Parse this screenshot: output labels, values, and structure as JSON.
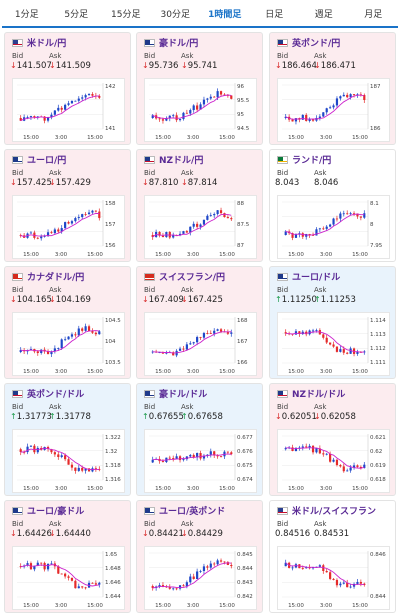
{
  "tabs": [
    "1分足",
    "5分足",
    "15分足",
    "30分足",
    "1時間足",
    "日足",
    "週足",
    "月足"
  ],
  "active_tab": 4,
  "labels": {
    "bid": "Bid",
    "ask": "Ask"
  },
  "colors": {
    "up_candle": "#1e46c8",
    "down_candle": "#e52a2a",
    "ma_line": "#cc22cc",
    "pair_text": "#5a2a95",
    "down_bg": "#fcecef",
    "up_bg": "#e9f3fc"
  },
  "cards": [
    {
      "name": "米ドル/円",
      "bid": "141.507",
      "ask": "141.509",
      "dir": "down",
      "flag_icon": "us-flag-icon",
      "y_ticks": [
        "142",
        "141"
      ],
      "x_ticks": [
        "15:00",
        "3:00",
        "15:00"
      ],
      "shape": "up"
    },
    {
      "name": "豪ドル/円",
      "bid": "95.736",
      "ask": "95.741",
      "dir": "down",
      "flag_icon": "au-flag-icon",
      "y_ticks": [
        "96",
        "95.5",
        "95",
        "94.5"
      ],
      "x_ticks": [
        "15:00",
        "3:00",
        "15:00"
      ],
      "shape": "up"
    },
    {
      "name": "英ポンド/円",
      "bid": "186.464",
      "ask": "186.471",
      "dir": "down",
      "flag_icon": "uk-flag-icon",
      "y_ticks": [
        "187",
        "186"
      ],
      "x_ticks": [
        "15:00",
        "3:00",
        "15:00"
      ],
      "shape": "up"
    },
    {
      "name": "ユーロ/円",
      "bid": "157.425",
      "ask": "157.429",
      "dir": "down",
      "flag_icon": "eu-flag-icon",
      "y_ticks": [
        "158",
        "157",
        "156"
      ],
      "x_ticks": [
        "15:00",
        "3:00",
        "15:00"
      ],
      "shape": "up"
    },
    {
      "name": "NZドル/円",
      "bid": "87.810",
      "ask": "87.814",
      "dir": "down",
      "flag_icon": "nz-flag-icon",
      "y_ticks": [
        "88",
        "87.5",
        "87"
      ],
      "x_ticks": [
        "15:00",
        "3:00",
        "15:00"
      ],
      "shape": "up"
    },
    {
      "name": "ランド/円",
      "bid": "8.043",
      "ask": "8.046",
      "dir": "flat",
      "flag_icon": "za-flag-icon",
      "y_ticks": [
        "8.1",
        "8",
        "7.95"
      ],
      "x_ticks": [
        "15:00",
        "3:00",
        "15:00"
      ],
      "shape": "up"
    },
    {
      "name": "カナダドル/円",
      "bid": "104.165",
      "ask": "104.169",
      "dir": "down",
      "flag_icon": "ca-flag-icon",
      "y_ticks": [
        "104.5",
        "104",
        "103.5"
      ],
      "x_ticks": [
        "15:00",
        "3:00",
        "15:00"
      ],
      "shape": "up"
    },
    {
      "name": "スイスフラン/円",
      "bid": "167.409",
      "ask": "167.425",
      "dir": "down",
      "flag_icon": "ch-flag-icon",
      "y_ticks": [
        "168",
        "167",
        "166"
      ],
      "x_ticks": [
        "15:00",
        "3:00",
        "15:00"
      ],
      "shape": "up"
    },
    {
      "name": "ユーロ/ドル",
      "bid": "1.11250",
      "ask": "1.11253",
      "dir": "up",
      "flag_icon": "eu-flag-icon",
      "y_ticks": [
        "1.114",
        "1.113",
        "1.112",
        "1.111"
      ],
      "x_ticks": [
        "15:00",
        "3:00",
        "15:00"
      ],
      "shape": "down"
    },
    {
      "name": "英ポンド/ドル",
      "bid": "1.31773",
      "ask": "1.31778",
      "dir": "up",
      "flag_icon": "uk-flag-icon",
      "y_ticks": [
        "1.322",
        "1.32",
        "1.318",
        "1.316"
      ],
      "x_ticks": [
        "15:00",
        "3:00",
        "15:00"
      ],
      "shape": "down"
    },
    {
      "name": "豪ドル/ドル",
      "bid": "0.67655",
      "ask": "0.67658",
      "dir": "up",
      "flag_icon": "au-flag-icon",
      "y_ticks": [
        "0.677",
        "0.676",
        "0.675",
        "0.674"
      ],
      "x_ticks": [
        "15:00",
        "3:00",
        "15:00"
      ],
      "shape": "flatup"
    },
    {
      "name": "NZドル/ドル",
      "bid": "0.62051",
      "ask": "0.62058",
      "dir": "down",
      "flag_icon": "nz-flag-icon",
      "y_ticks": [
        "0.621",
        "0.62",
        "0.619",
        "0.618"
      ],
      "x_ticks": [
        "15:00",
        "3:00",
        "15:00"
      ],
      "shape": "down"
    },
    {
      "name": "ユーロ/豪ドル",
      "bid": "1.64426",
      "ask": "1.64440",
      "dir": "down",
      "flag_icon": "eu-flag-icon",
      "y_ticks": [
        "1.65",
        "1.648",
        "1.646",
        "1.644"
      ],
      "x_ticks": [
        "15:00",
        "3:00",
        "15:00"
      ],
      "shape": "down"
    },
    {
      "name": "ユーロ/英ポンド",
      "bid": "0.84421",
      "ask": "0.84429",
      "dir": "down",
      "flag_icon": "eu-flag-icon",
      "y_ticks": [
        "0.845",
        "0.844",
        "0.843",
        "0.842"
      ],
      "x_ticks": [
        "15:00",
        "3:00",
        "15:00"
      ],
      "shape": "up"
    },
    {
      "name": "米ドル/スイスフラン",
      "bid": "0.84516",
      "ask": "0.84531",
      "dir": "flat",
      "flag_icon": "us-flag-icon",
      "y_ticks": [
        "0.846",
        "0.844"
      ],
      "x_ticks": [
        "15:00",
        "3:00",
        "15:00"
      ],
      "shape": "down"
    }
  ]
}
